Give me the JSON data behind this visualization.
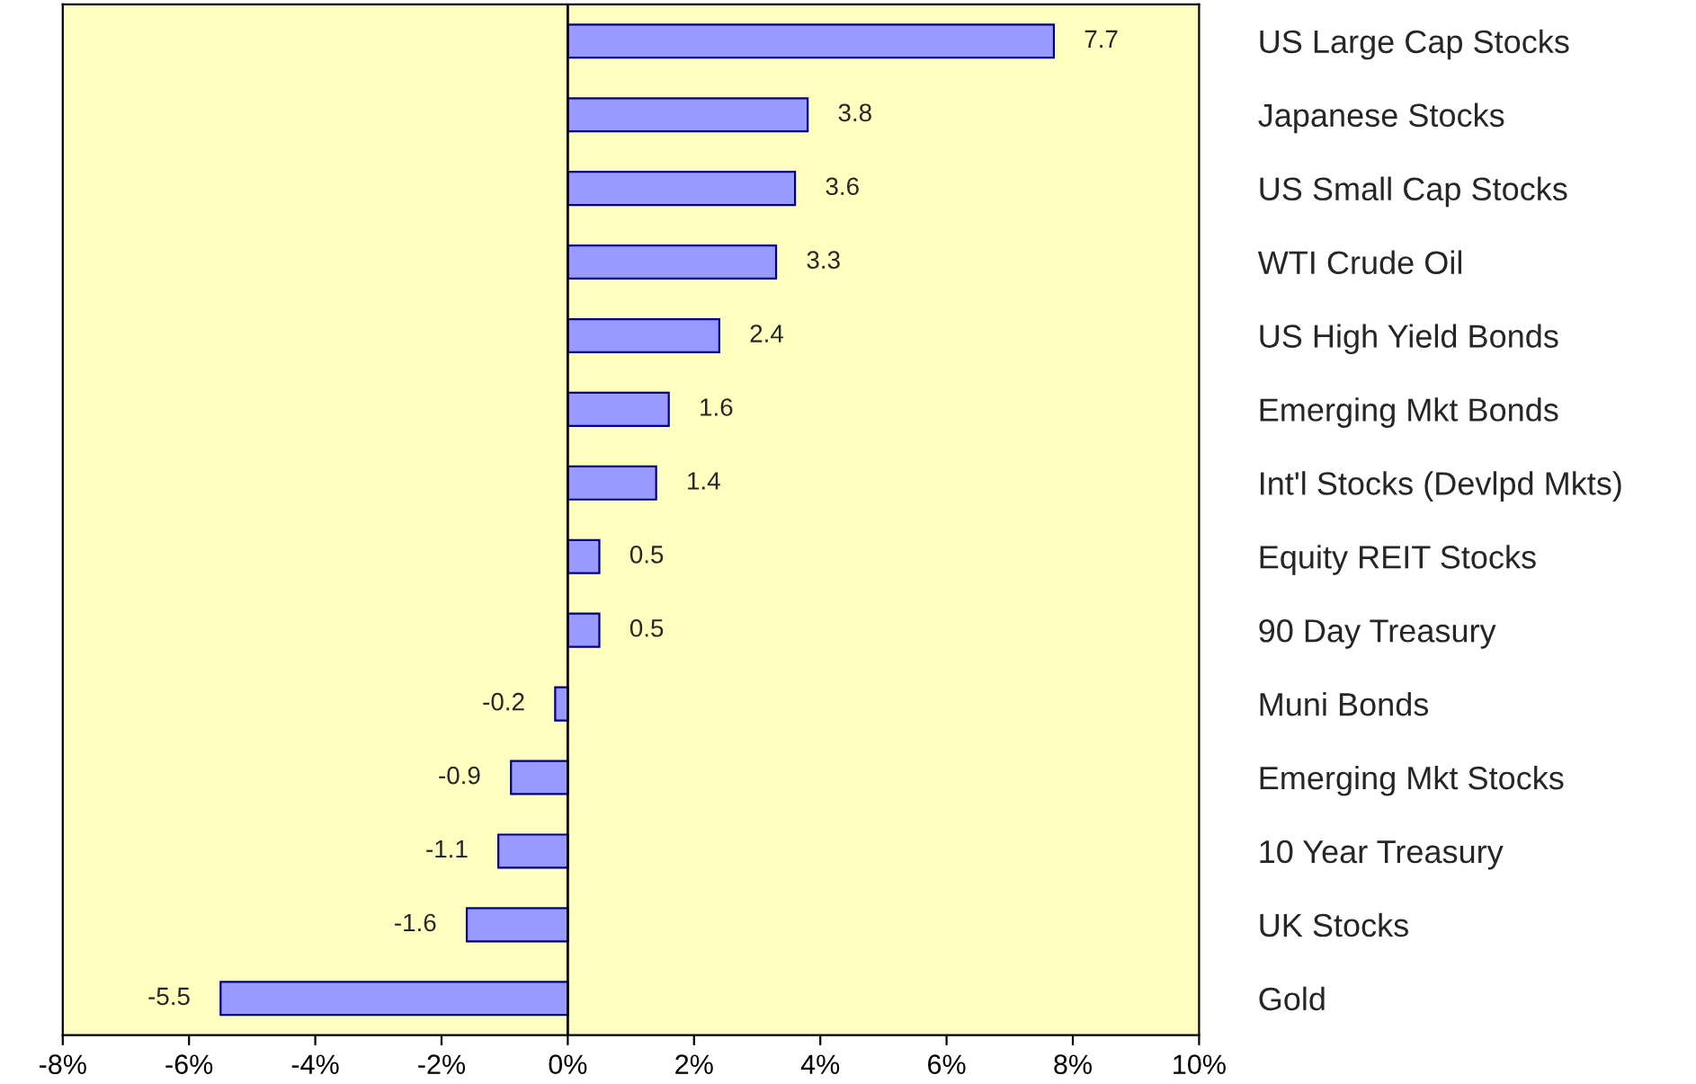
{
  "chart_data": {
    "type": "bar",
    "orientation": "horizontal",
    "categories": [
      "US Large Cap Stocks",
      "Japanese Stocks",
      "US Small Cap Stocks",
      "WTI Crude Oil",
      "US High Yield Bonds",
      "Emerging Mkt Bonds",
      "Int'l Stocks (Devlpd Mkts)",
      "Equity REIT Stocks",
      "90 Day Treasury",
      "Muni Bonds",
      "Emerging Mkt Stocks",
      "10 Year Treasury",
      "UK Stocks",
      "Gold"
    ],
    "values": [
      7.7,
      3.8,
      3.6,
      3.3,
      2.4,
      1.6,
      1.4,
      0.5,
      0.5,
      -0.2,
      -0.9,
      -1.1,
      -1.6,
      -5.5
    ],
    "color": "#9999ff",
    "data_labels": true,
    "xlim": [
      -8,
      10
    ],
    "xticks": [
      {
        "value": -8,
        "label": "-8%"
      },
      {
        "value": -6,
        "label": "-6%"
      },
      {
        "value": -4,
        "label": "-4%"
      },
      {
        "value": -2,
        "label": "-2%"
      },
      {
        "value": 0,
        "label": "0%"
      },
      {
        "value": 2,
        "label": "2%"
      },
      {
        "value": 4,
        "label": "4%"
      },
      {
        "value": 6,
        "label": "6%"
      },
      {
        "value": 8,
        "label": "8%"
      },
      {
        "value": 10,
        "label": "10%"
      }
    ],
    "ref_lines": [
      {
        "axis": "x",
        "value": 0,
        "color": "#000000",
        "line_style": "solid"
      }
    ],
    "grid": false,
    "legend": false
  }
}
